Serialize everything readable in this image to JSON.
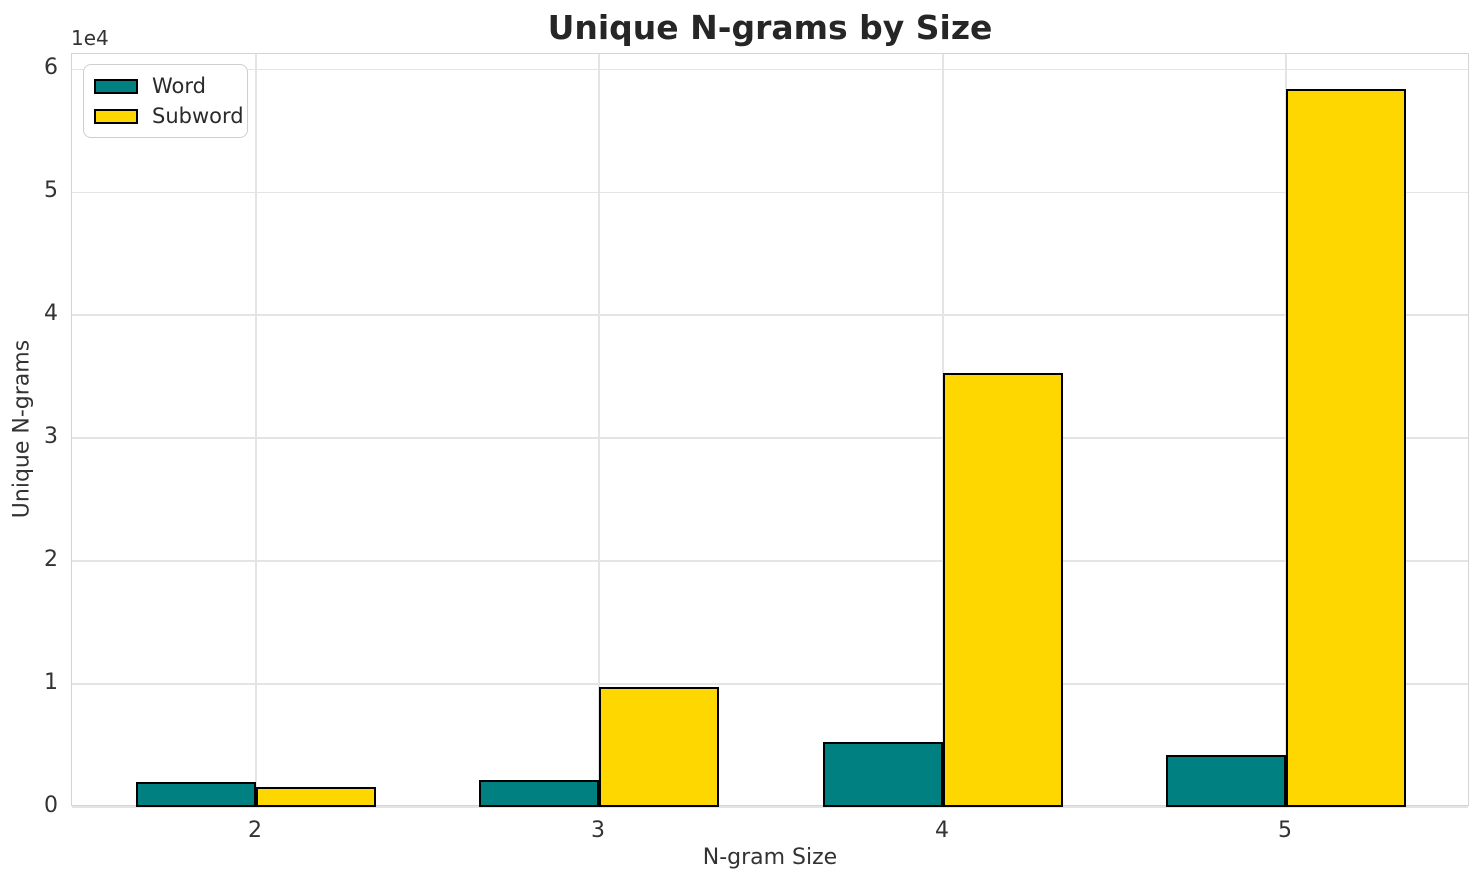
{
  "chart_data": {
    "type": "bar",
    "title": "Unique N-grams by Size",
    "xlabel": "N-gram Size",
    "ylabel": "Unique N-grams",
    "categories": [
      "2",
      "3",
      "4",
      "5"
    ],
    "series": [
      {
        "name": "Word",
        "color": "#008080",
        "values": [
          2030,
          2200,
          5290,
          4230
        ]
      },
      {
        "name": "Subword",
        "color": "#FFD700",
        "values": [
          1630,
          9760,
          35290,
          58370
        ]
      }
    ],
    "bar_edge_color": "#000000",
    "ylim": [
      0,
      61250
    ],
    "yticks": [
      0,
      10000,
      20000,
      30000,
      40000,
      50000,
      60000
    ],
    "ytick_labels": [
      "0",
      "1",
      "2",
      "3",
      "4",
      "5",
      "6"
    ],
    "y_offset_label": "1e4",
    "grid": true,
    "legend_position": "upper-left"
  }
}
